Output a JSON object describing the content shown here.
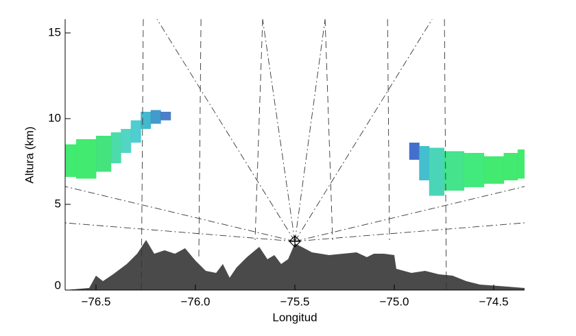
{
  "chart_data": {
    "type": "cross-section",
    "x_label": "Longitud",
    "y_label": "Altura (km)",
    "xlim": [
      -76.655,
      -74.345
    ],
    "ylim": [
      0,
      15.8
    ],
    "xticks": [
      {
        "value": -76.5,
        "label": "−76.5"
      },
      {
        "value": -76.0,
        "label": "−76.0"
      },
      {
        "value": -75.5,
        "label": "−75.5"
      },
      {
        "value": -75.0,
        "label": "−75.0"
      },
      {
        "value": -74.5,
        "label": "−74.5"
      }
    ],
    "yticks": [
      0,
      5,
      10,
      15
    ],
    "terrain": {
      "color": "#4a4a4a",
      "x": [
        -76.655,
        -76.534,
        -76.5,
        -76.465,
        -76.414,
        -76.345,
        -76.293,
        -76.248,
        -76.207,
        -76.155,
        -76.103,
        -76.052,
        -76.0,
        -75.948,
        -75.896,
        -75.862,
        -75.828,
        -75.793,
        -75.741,
        -75.679,
        -75.638,
        -75.603,
        -75.569,
        -75.534,
        -75.5,
        -75.466,
        -75.414,
        -75.328,
        -75.259,
        -75.19,
        -75.138,
        -75.103,
        -75.052,
        -75.0,
        -74.99,
        -74.914,
        -74.845,
        -74.776,
        -74.707,
        -74.638,
        -74.569,
        -74.431,
        -74.345
      ],
      "values": [
        0,
        0.12,
        0.84,
        0.52,
        0.92,
        1.52,
        2.12,
        2.92,
        2.12,
        2.32,
        2.12,
        2.44,
        1.72,
        1.12,
        1.0,
        1.52,
        0.72,
        1.32,
        1.92,
        2.52,
        1.8,
        2.04,
        1.52,
        1.8,
        2.72,
        2.52,
        2.2,
        2.04,
        2.12,
        2.2,
        1.92,
        2.12,
        2.12,
        2.04,
        1.24,
        1.0,
        1.12,
        0.92,
        0.84,
        0.52,
        0.32,
        0.2,
        0.12
      ]
    },
    "radar": {
      "x": -75.5,
      "y": 2.84
    },
    "echoes": [
      {
        "x": [
          -76.65,
          -76.55,
          -76.45,
          -76.4,
          -76.35,
          -76.3,
          -76.25,
          -76.2,
          -76.15
        ],
        "low": [
          6.6,
          6.5,
          6.9,
          7.4,
          8.0,
          8.6,
          9.4,
          9.7,
          9.9
        ],
        "high": [
          8.5,
          8.8,
          9.0,
          9.2,
          9.4,
          9.9,
          10.4,
          10.5,
          10.4
        ],
        "colors": [
          "#2ee860",
          "#2ee860",
          "#30e070",
          "#38d8a0",
          "#40d0c0",
          "#3cc8cc",
          "#30b0c8",
          "#2f8fc8",
          "#3a70c0"
        ]
      },
      {
        "x": [
          -74.9,
          -74.85,
          -74.8,
          -74.7,
          -74.6,
          -74.5,
          -74.4,
          -74.36
        ],
        "low": [
          7.6,
          6.4,
          5.5,
          5.8,
          6.0,
          6.2,
          6.4,
          6.5
        ],
        "high": [
          8.6,
          8.4,
          8.3,
          8.1,
          8.0,
          7.8,
          8.0,
          8.2
        ],
        "colors": [
          "#3060c8",
          "#30b8c8",
          "#36d0b0",
          "#30e080",
          "#2ee870",
          "#2ee860",
          "#2ee860",
          "#2ee860"
        ]
      }
    ],
    "dashed_lines": [
      {
        "x": [
          -76.262,
          -76.272
        ],
        "y": [
          15.8,
          0
        ]
      },
      {
        "x": [
          -75.972,
          -75.983
        ],
        "y": [
          15.8,
          1.72
        ]
      },
      {
        "x": [
          -75.662,
          -75.7
        ],
        "y": [
          15.8,
          2.92
        ]
      },
      {
        "x": [
          -75.348,
          -75.31
        ],
        "y": [
          15.8,
          2.92
        ]
      },
      {
        "x": [
          -75.034,
          -75.024
        ],
        "y": [
          15.8,
          2.92
        ]
      },
      {
        "x": [
          -74.748,
          -74.738
        ],
        "y": [
          15.8,
          0
        ]
      }
    ],
    "dashdot_lines": [
      {
        "x": [
          -75.5,
          -76.193
        ],
        "y": [
          2.84,
          15.8
        ]
      },
      {
        "x": [
          -75.5,
          -74.81
        ],
        "y": [
          2.84,
          15.8
        ]
      },
      {
        "x": [
          -75.5,
          -75.662
        ],
        "y": [
          2.84,
          15.8
        ]
      },
      {
        "x": [
          -75.5,
          -75.348
        ],
        "y": [
          2.84,
          15.8
        ]
      },
      {
        "x": [
          -75.5,
          -76.655
        ],
        "y": [
          2.84,
          6.04
        ]
      },
      {
        "x": [
          -75.5,
          -76.655
        ],
        "y": [
          2.84,
          3.92
        ]
      },
      {
        "x": [
          -75.5,
          -74.345
        ],
        "y": [
          2.84,
          6.04
        ]
      },
      {
        "x": [
          -75.5,
          -74.345
        ],
        "y": [
          2.84,
          3.92
        ]
      }
    ]
  }
}
